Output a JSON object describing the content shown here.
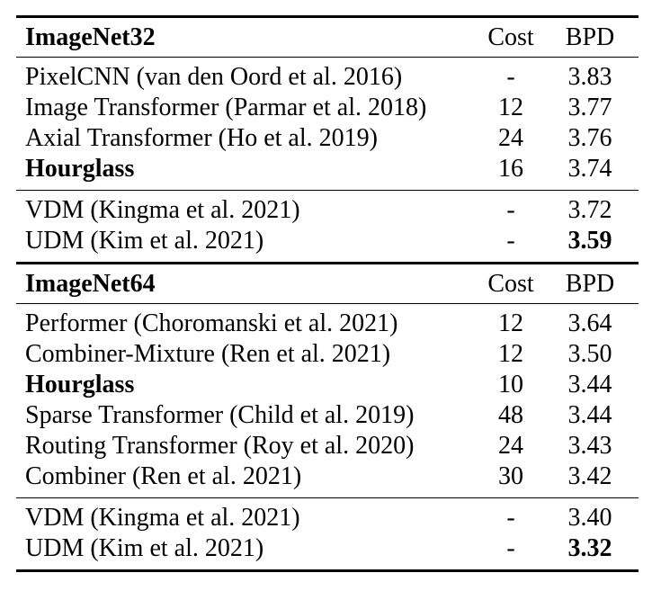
{
  "colors": {
    "background": "#ffffff",
    "text": "#000000",
    "rule": "#000000"
  },
  "table": {
    "sections": [
      {
        "header": {
          "title": "ImageNet32",
          "cost": "Cost",
          "bpd": "BPD"
        },
        "groups": [
          {
            "rows": [
              {
                "model": "PixelCNN (van den Oord et al. 2016)",
                "cost": "-",
                "bpd": "3.83",
                "model_bold": false,
                "bpd_bold": false
              },
              {
                "model": "Image Transformer (Parmar et al. 2018)",
                "cost": "12",
                "bpd": "3.77",
                "model_bold": false,
                "bpd_bold": false
              },
              {
                "model": "Axial Transformer (Ho et al. 2019)",
                "cost": "24",
                "bpd": "3.76",
                "model_bold": false,
                "bpd_bold": false
              },
              {
                "model": "Hourglass",
                "cost": "16",
                "bpd": "3.74",
                "model_bold": true,
                "bpd_bold": false
              }
            ]
          },
          {
            "rows": [
              {
                "model": "VDM (Kingma et al. 2021)",
                "cost": "-",
                "bpd": "3.72",
                "model_bold": false,
                "bpd_bold": false
              },
              {
                "model": "UDM (Kim et al. 2021)",
                "cost": "-",
                "bpd": "3.59",
                "model_bold": false,
                "bpd_bold": true
              }
            ]
          }
        ]
      },
      {
        "header": {
          "title": "ImageNet64",
          "cost": "Cost",
          "bpd": "BPD"
        },
        "groups": [
          {
            "rows": [
              {
                "model": "Performer (Choromanski et al. 2021)",
                "cost": "12",
                "bpd": "3.64",
                "model_bold": false,
                "bpd_bold": false
              },
              {
                "model": "Combiner-Mixture (Ren et al. 2021)",
                "cost": "12",
                "bpd": "3.50",
                "model_bold": false,
                "bpd_bold": false
              },
              {
                "model": "Hourglass",
                "cost": "10",
                "bpd": "3.44",
                "model_bold": true,
                "bpd_bold": false
              },
              {
                "model": "Sparse Transformer (Child et al. 2019)",
                "cost": "48",
                "bpd": "3.44",
                "model_bold": false,
                "bpd_bold": false
              },
              {
                "model": "Routing Transformer (Roy et al. 2020)",
                "cost": "24",
                "bpd": "3.43",
                "model_bold": false,
                "bpd_bold": false
              },
              {
                "model": "Combiner (Ren et al. 2021)",
                "cost": "30",
                "bpd": "3.42",
                "model_bold": false,
                "bpd_bold": false
              }
            ]
          },
          {
            "rows": [
              {
                "model": "VDM (Kingma et al. 2021)",
                "cost": "-",
                "bpd": "3.40",
                "model_bold": false,
                "bpd_bold": false
              },
              {
                "model": "UDM (Kim et al. 2021)",
                "cost": "-",
                "bpd": "3.32",
                "model_bold": false,
                "bpd_bold": true
              }
            ]
          }
        ]
      }
    ]
  }
}
